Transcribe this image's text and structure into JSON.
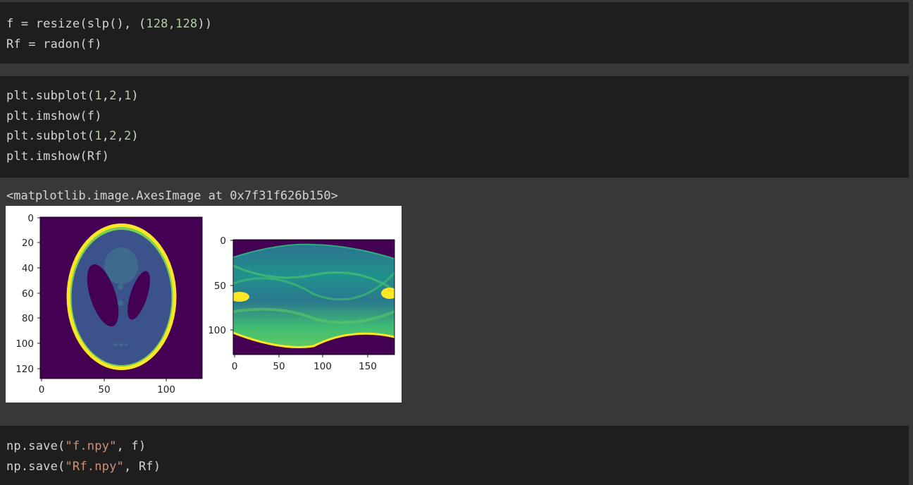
{
  "cells": {
    "cell1": {
      "lines": [
        {
          "a": "f = resize(slp(), (",
          "n1": "128",
          "c": ",",
          "n2": "128",
          "b": "))"
        },
        {
          "text": "Rf = radon(f)"
        }
      ]
    },
    "cell2": {
      "lines": [
        {
          "a": "plt.subplot(",
          "n1": "1",
          "c1": ",",
          "n2": "2",
          "c2": ",",
          "n3": "1",
          "b": ")"
        },
        {
          "text": "plt.imshow(f)"
        },
        {
          "a": "plt.subplot(",
          "n1": "1",
          "c1": ",",
          "n2": "2",
          "c2": ",",
          "n3": "2",
          "b": ")"
        },
        {
          "text": "plt.imshow(Rf)"
        }
      ]
    },
    "output": {
      "repr": "<matplotlib.image.AxesImage at 0x7f31f626b150>"
    },
    "cell3": {
      "lines": [
        {
          "a": "np.save(",
          "s": "\"f.npy\"",
          "b": ", f)"
        },
        {
          "a": "np.save(",
          "s": "\"Rf.npy\"",
          "b": ", Rf)"
        }
      ]
    }
  },
  "colors": {
    "viridis_dark": "#440154",
    "viridis_blue": "#3b528b",
    "viridis_teal": "#21918c",
    "viridis_green": "#5ec962",
    "viridis_yellow": "#fde725",
    "cell_bg": "#1e1e1e",
    "page_bg": "#383838"
  },
  "chart_data": [
    {
      "type": "heatmap",
      "title": "",
      "xlabel": "",
      "ylabel": "",
      "xticks": [
        "0",
        "50",
        "100"
      ],
      "yticks": [
        "0",
        "20",
        "40",
        "60",
        "80",
        "100",
        "120"
      ],
      "xlim": [
        0,
        128
      ],
      "ylim": [
        128,
        0
      ],
      "colormap": "viridis",
      "description_values": "Shepp-Logan phantom 128x128"
    },
    {
      "type": "heatmap",
      "title": "",
      "xlabel": "",
      "ylabel": "",
      "xticks": [
        "0",
        "50",
        "100",
        "150"
      ],
      "yticks": [
        "0",
        "50",
        "100"
      ],
      "xlim": [
        0,
        180
      ],
      "ylim": [
        128,
        0
      ],
      "colormap": "viridis"
    }
  ]
}
